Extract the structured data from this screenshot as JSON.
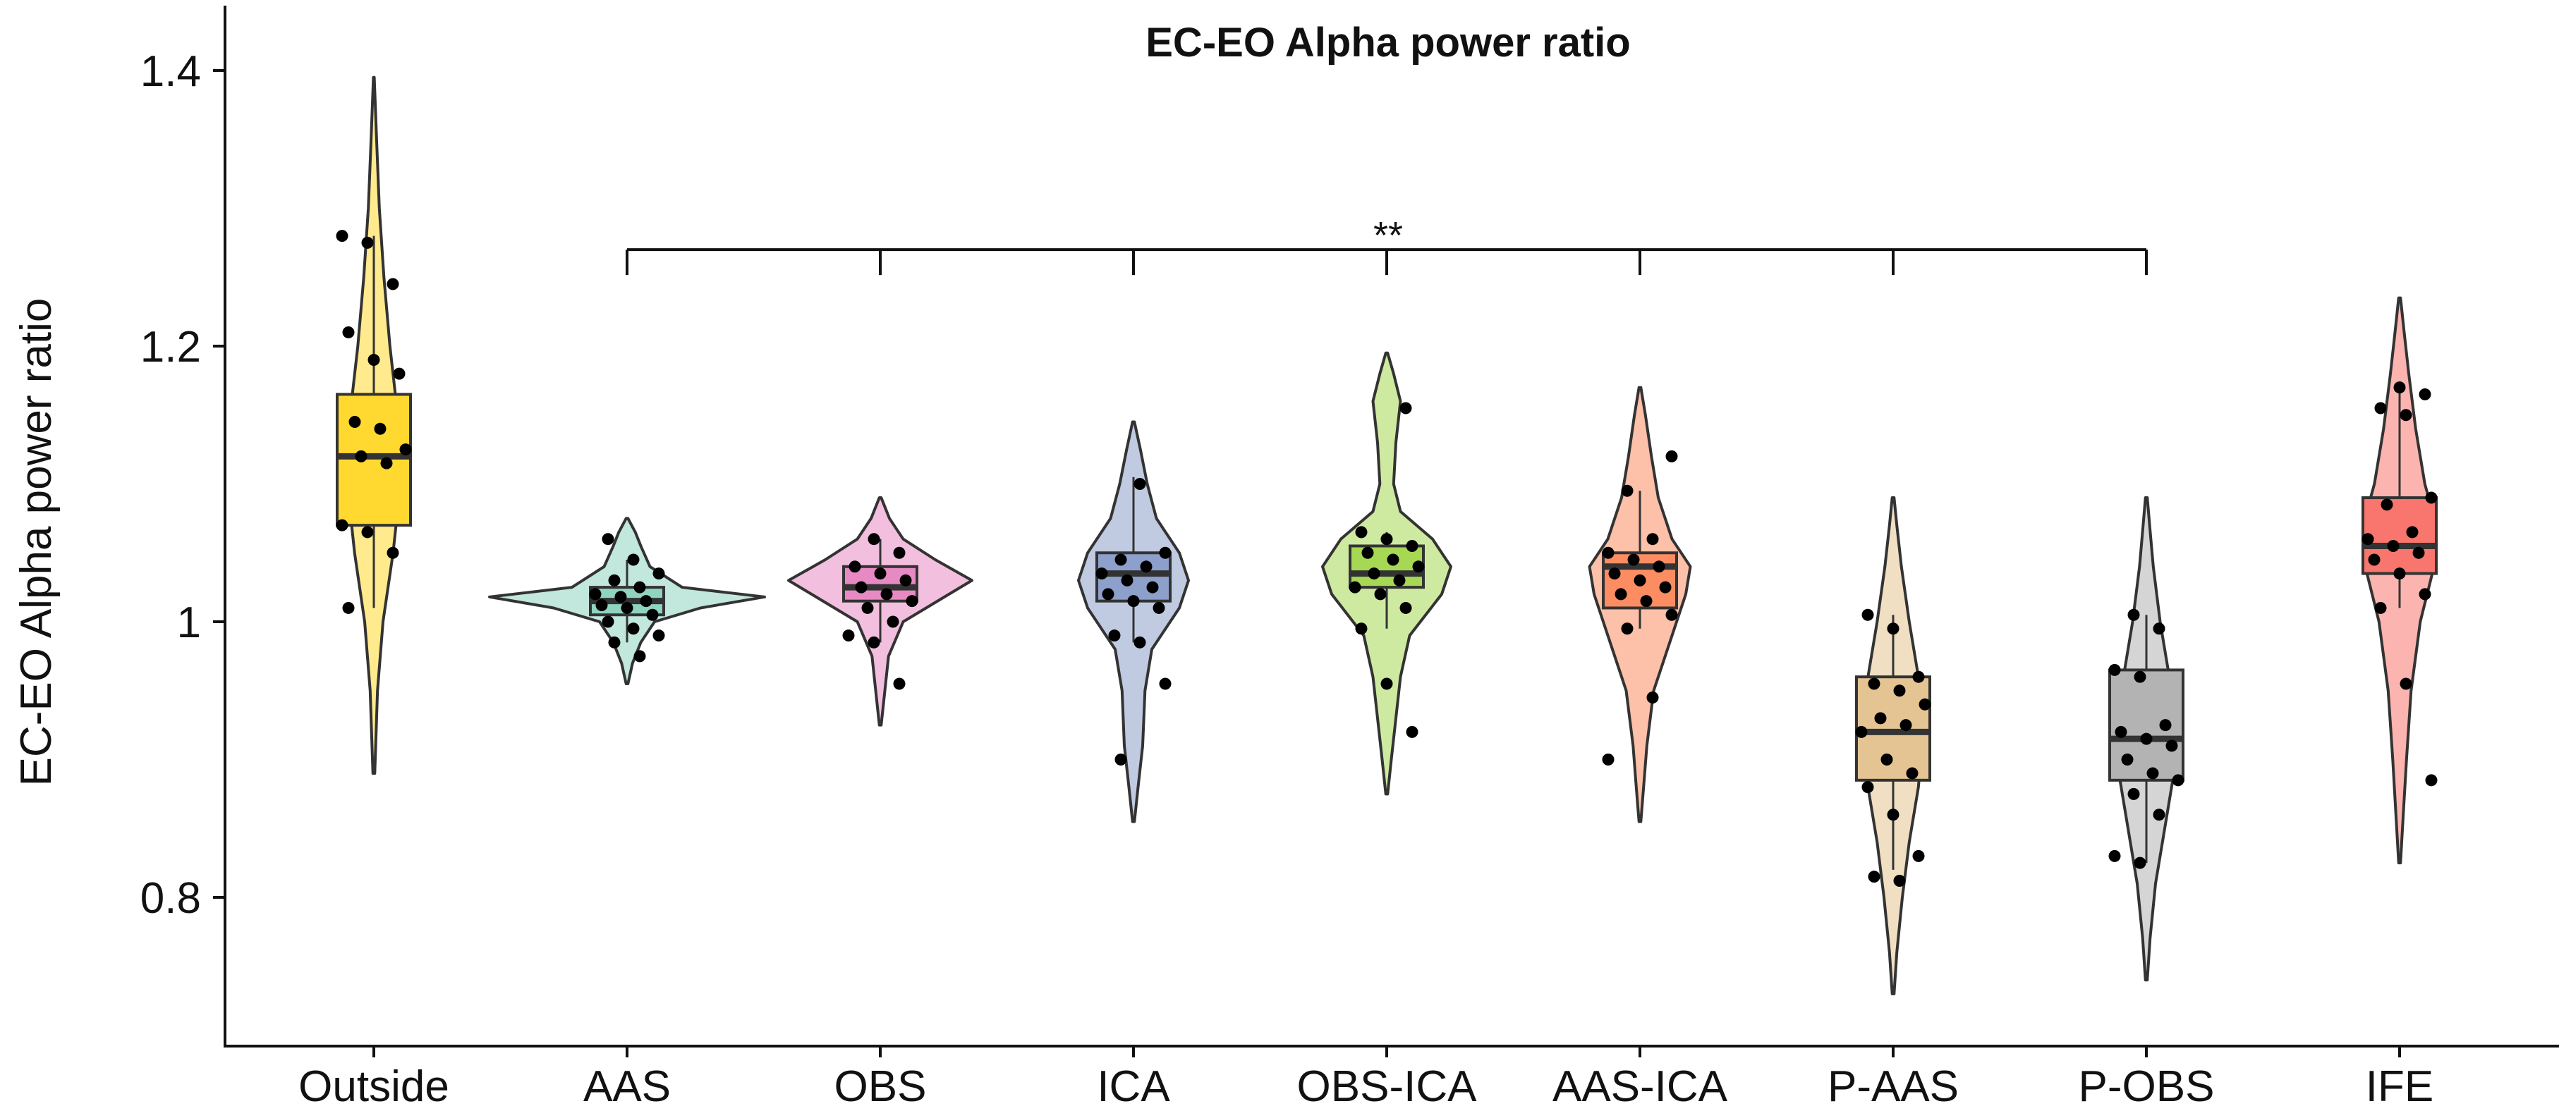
{
  "chart_data": {
    "type": "violin",
    "title": "EC-EO Alpha power ratio",
    "xlabel": "",
    "ylabel": "EC-EO Alpha power ratio",
    "ylim": [
      0.69,
      1.42
    ],
    "yticks": [
      0.8,
      1,
      1.2,
      1.4
    ],
    "ytick_labels": [
      "0.8",
      "1",
      "1.2",
      "1.4"
    ],
    "grid": false,
    "legend": "none",
    "categories": [
      "Outside",
      "AAS",
      "OBS",
      "ICA",
      "OBS-ICA",
      "AAS-ICA",
      "P-AAS",
      "P-OBS",
      "IFE"
    ],
    "colors": [
      "#FFD92F",
      "#8FD3C0",
      "#E78AC3",
      "#8DA0CB",
      "#A6D854",
      "#FC8D62",
      "#E5C494",
      "#B3B3B3",
      "#F8766D"
    ],
    "groups": [
      {
        "name": "Outside",
        "box": {
          "q1": 1.07,
          "median": 1.12,
          "q3": 1.165,
          "whisker_low": 1.01,
          "whisker_high": 1.28
        },
        "violin": {
          "min": 0.89,
          "max": 1.395,
          "profile": [
            [
              0.89,
              0.002
            ],
            [
              0.95,
              0.008
            ],
            [
              1.0,
              0.02
            ],
            [
              1.05,
              0.042
            ],
            [
              1.1,
              0.058
            ],
            [
              1.15,
              0.052
            ],
            [
              1.2,
              0.035
            ],
            [
              1.25,
              0.022
            ],
            [
              1.3,
              0.012
            ],
            [
              1.35,
              0.006
            ],
            [
              1.395,
              0.001
            ]
          ]
        },
        "points": [
          1.28,
          1.275,
          1.245,
          1.21,
          1.19,
          1.18,
          1.145,
          1.14,
          1.125,
          1.12,
          1.115,
          1.07,
          1.065,
          1.05,
          1.01
        ]
      },
      {
        "name": "AAS",
        "box": {
          "q1": 1.005,
          "median": 1.015,
          "q3": 1.025,
          "whisker_low": 0.985,
          "whisker_high": 1.045
        },
        "violin": {
          "min": 0.955,
          "max": 1.075,
          "profile": [
            [
              0.955,
              0.002
            ],
            [
              0.97,
              0.012
            ],
            [
              0.985,
              0.03
            ],
            [
              1.0,
              0.06
            ],
            [
              1.01,
              0.16
            ],
            [
              1.018,
              0.3
            ],
            [
              1.025,
              0.12
            ],
            [
              1.04,
              0.05
            ],
            [
              1.055,
              0.03
            ],
            [
              1.065,
              0.018
            ],
            [
              1.075,
              0.002
            ]
          ]
        },
        "points": [
          1.06,
          1.045,
          1.035,
          1.03,
          1.025,
          1.02,
          1.018,
          1.015,
          1.012,
          1.01,
          1.005,
          1.0,
          0.995,
          0.99,
          0.985,
          0.975
        ]
      },
      {
        "name": "OBS",
        "box": {
          "q1": 1.015,
          "median": 1.025,
          "q3": 1.04,
          "whisker_low": 0.985,
          "whisker_high": 1.06
        },
        "violin": {
          "min": 0.925,
          "max": 1.09,
          "profile": [
            [
              0.925,
              0.002
            ],
            [
              0.95,
              0.01
            ],
            [
              0.975,
              0.018
            ],
            [
              1.0,
              0.05
            ],
            [
              1.02,
              0.15
            ],
            [
              1.03,
              0.2
            ],
            [
              1.045,
              0.12
            ],
            [
              1.06,
              0.05
            ],
            [
              1.075,
              0.02
            ],
            [
              1.09,
              0.002
            ]
          ]
        },
        "points": [
          1.06,
          1.05,
          1.04,
          1.035,
          1.03,
          1.025,
          1.02,
          1.015,
          1.01,
          1.0,
          0.99,
          0.985,
          0.955
        ]
      },
      {
        "name": "ICA",
        "box": {
          "q1": 1.015,
          "median": 1.035,
          "q3": 1.05,
          "whisker_low": 0.985,
          "whisker_high": 1.105
        },
        "violin": {
          "min": 0.855,
          "max": 1.145,
          "profile": [
            [
              0.855,
              0.002
            ],
            [
              0.88,
              0.01
            ],
            [
              0.91,
              0.02
            ],
            [
              0.95,
              0.025
            ],
            [
              0.98,
              0.04
            ],
            [
              1.01,
              0.1
            ],
            [
              1.03,
              0.12
            ],
            [
              1.05,
              0.1
            ],
            [
              1.075,
              0.05
            ],
            [
              1.1,
              0.03
            ],
            [
              1.125,
              0.015
            ],
            [
              1.145,
              0.002
            ]
          ]
        },
        "points": [
          1.1,
          1.05,
          1.045,
          1.04,
          1.035,
          1.03,
          1.025,
          1.02,
          1.015,
          1.01,
          0.99,
          0.985,
          0.955,
          0.9
        ]
      },
      {
        "name": "OBS-ICA",
        "box": {
          "q1": 1.025,
          "median": 1.035,
          "q3": 1.055,
          "whisker_low": 0.995,
          "whisker_high": 1.065
        },
        "violin": {
          "min": 0.875,
          "max": 1.195,
          "profile": [
            [
              0.875,
              0.002
            ],
            [
              0.9,
              0.01
            ],
            [
              0.93,
              0.02
            ],
            [
              0.96,
              0.03
            ],
            [
              0.99,
              0.05
            ],
            [
              1.02,
              0.12
            ],
            [
              1.04,
              0.14
            ],
            [
              1.06,
              0.1
            ],
            [
              1.08,
              0.03
            ],
            [
              1.1,
              0.015
            ],
            [
              1.13,
              0.02
            ],
            [
              1.16,
              0.03
            ],
            [
              1.18,
              0.015
            ],
            [
              1.195,
              0.002
            ]
          ]
        },
        "points": [
          1.155,
          1.065,
          1.06,
          1.055,
          1.05,
          1.045,
          1.04,
          1.035,
          1.03,
          1.025,
          1.02,
          1.01,
          0.995,
          0.955,
          0.92
        ]
      },
      {
        "name": "AAS-ICA",
        "box": {
          "q1": 1.01,
          "median": 1.04,
          "q3": 1.05,
          "whisker_low": 0.995,
          "whisker_high": 1.095
        },
        "violin": {
          "min": 0.855,
          "max": 1.17,
          "profile": [
            [
              0.855,
              0.002
            ],
            [
              0.88,
              0.008
            ],
            [
              0.91,
              0.015
            ],
            [
              0.95,
              0.03
            ],
            [
              0.99,
              0.07
            ],
            [
              1.02,
              0.1
            ],
            [
              1.04,
              0.11
            ],
            [
              1.06,
              0.07
            ],
            [
              1.09,
              0.04
            ],
            [
              1.12,
              0.025
            ],
            [
              1.15,
              0.012
            ],
            [
              1.17,
              0.002
            ]
          ]
        },
        "points": [
          1.12,
          1.095,
          1.06,
          1.05,
          1.045,
          1.04,
          1.035,
          1.03,
          1.025,
          1.02,
          1.015,
          1.005,
          0.995,
          0.945,
          0.9
        ]
      },
      {
        "name": "P-AAS",
        "box": {
          "q1": 0.885,
          "median": 0.92,
          "q3": 0.96,
          "whisker_low": 0.82,
          "whisker_high": 1.005
        },
        "violin": {
          "min": 0.73,
          "max": 1.09,
          "profile": [
            [
              0.73,
              0.002
            ],
            [
              0.76,
              0.008
            ],
            [
              0.8,
              0.02
            ],
            [
              0.84,
              0.035
            ],
            [
              0.88,
              0.055
            ],
            [
              0.92,
              0.065
            ],
            [
              0.96,
              0.055
            ],
            [
              1.0,
              0.035
            ],
            [
              1.04,
              0.018
            ],
            [
              1.07,
              0.008
            ],
            [
              1.09,
              0.002
            ]
          ]
        },
        "points": [
          1.005,
          0.995,
          0.96,
          0.955,
          0.95,
          0.94,
          0.93,
          0.925,
          0.92,
          0.9,
          0.89,
          0.88,
          0.86,
          0.83,
          0.815,
          0.812
        ]
      },
      {
        "name": "P-OBS",
        "box": {
          "q1": 0.885,
          "median": 0.915,
          "q3": 0.965,
          "whisker_low": 0.825,
          "whisker_high": 1.005
        },
        "violin": {
          "min": 0.74,
          "max": 1.09,
          "profile": [
            [
              0.74,
              0.002
            ],
            [
              0.77,
              0.008
            ],
            [
              0.81,
              0.02
            ],
            [
              0.85,
              0.04
            ],
            [
              0.89,
              0.06
            ],
            [
              0.92,
              0.065
            ],
            [
              0.96,
              0.05
            ],
            [
              1.0,
              0.03
            ],
            [
              1.04,
              0.015
            ],
            [
              1.07,
              0.007
            ],
            [
              1.09,
              0.002
            ]
          ]
        },
        "points": [
          1.005,
          0.995,
          0.965,
          0.96,
          0.925,
          0.92,
          0.915,
          0.91,
          0.9,
          0.89,
          0.885,
          0.875,
          0.86,
          0.83,
          0.825
        ]
      },
      {
        "name": "IFE",
        "box": {
          "q1": 1.035,
          "median": 1.055,
          "q3": 1.09,
          "whisker_low": 1.01,
          "whisker_high": 1.17
        },
        "violin": {
          "min": 0.825,
          "max": 1.235,
          "profile": [
            [
              0.825,
              0.002
            ],
            [
              0.86,
              0.008
            ],
            [
              0.9,
              0.015
            ],
            [
              0.95,
              0.025
            ],
            [
              1.0,
              0.045
            ],
            [
              1.04,
              0.075
            ],
            [
              1.07,
              0.08
            ],
            [
              1.1,
              0.055
            ],
            [
              1.14,
              0.035
            ],
            [
              1.18,
              0.02
            ],
            [
              1.21,
              0.01
            ],
            [
              1.235,
              0.002
            ]
          ]
        },
        "points": [
          1.17,
          1.165,
          1.155,
          1.15,
          1.09,
          1.085,
          1.065,
          1.06,
          1.055,
          1.05,
          1.045,
          1.035,
          1.02,
          1.01,
          0.955,
          0.885
        ]
      }
    ],
    "significance": {
      "label": "**",
      "y": 1.27,
      "from": "AAS",
      "to": "P-OBS",
      "ticks_at": [
        "AAS",
        "OBS",
        "ICA",
        "OBS-ICA",
        "AAS-ICA",
        "P-AAS",
        "P-OBS"
      ]
    }
  }
}
